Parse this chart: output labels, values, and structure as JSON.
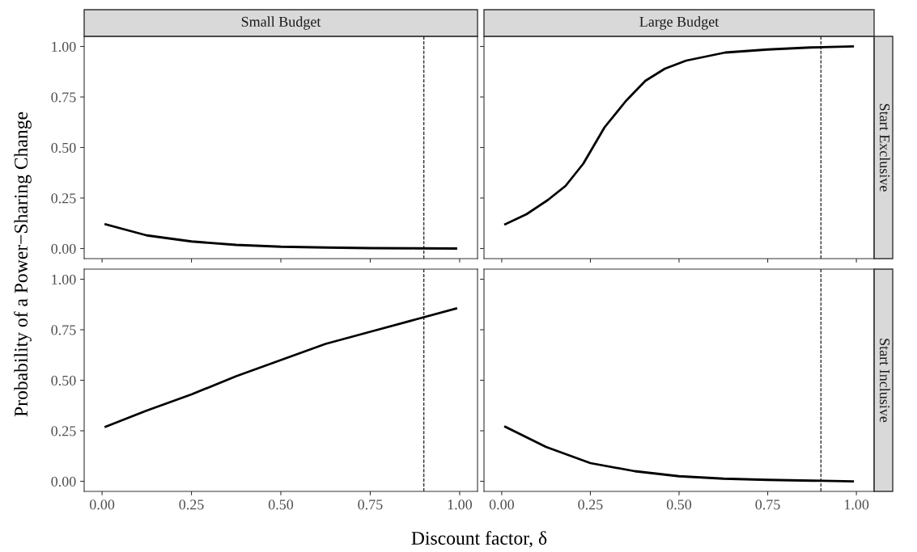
{
  "chart_data": [
    {
      "type": "line",
      "title": "Small Budget",
      "xlabel": "Discount factor, δ",
      "ylabel": "Probability of a Power−Sharing Change",
      "x": [
        0.01,
        0.125,
        0.25,
        0.375,
        0.5,
        0.625,
        0.75,
        0.875,
        0.99
      ],
      "series": [
        {
          "color": "#000000",
          "values": [
            0.12,
            0.065,
            0.035,
            0.018,
            0.009,
            0.005,
            0.002,
            0.001,
            0.0
          ]
        }
      ],
      "xlim": [
        -0.05,
        1.05
      ],
      "ylim": [
        -0.05,
        1.05
      ],
      "xticks": [
        {
          "value": 0,
          "label": null
        },
        {
          "value": 0.25,
          "label": null
        },
        {
          "value": 0.5,
          "label": null
        },
        {
          "value": 0.75,
          "label": null
        },
        {
          "value": 1,
          "label": null
        }
      ],
      "yticks": [
        {
          "value": 0,
          "label": "0.00"
        },
        {
          "value": 0.25,
          "label": "0.25"
        },
        {
          "value": 0.5,
          "label": "0.50"
        },
        {
          "value": 0.75,
          "label": "0.75"
        },
        {
          "value": 1,
          "label": "1.00"
        }
      ],
      "tick_labels": "y",
      "grid": false,
      "ref_lines": [
        {
          "axis": "x",
          "value": 0.9,
          "color": "#000000",
          "line_style": "dashed"
        }
      ]
    },
    {
      "type": "line",
      "title": "Large Budget",
      "annotations": [
        "Start Exclusive"
      ],
      "x": [
        0.01,
        0.07,
        0.13,
        0.18,
        0.23,
        0.29,
        0.35,
        0.405,
        0.46,
        0.52,
        0.63,
        0.75,
        0.87,
        0.99
      ],
      "series": [
        {
          "color": "#000000",
          "values": [
            0.12,
            0.17,
            0.24,
            0.31,
            0.42,
            0.6,
            0.73,
            0.83,
            0.89,
            0.93,
            0.97,
            0.985,
            0.995,
            1.0
          ]
        }
      ],
      "xlim": [
        -0.05,
        1.05
      ],
      "ylim": [
        -0.05,
        1.05
      ],
      "xticks": [
        {
          "value": 0,
          "label": null
        },
        {
          "value": 0.25,
          "label": null
        },
        {
          "value": 0.5,
          "label": null
        },
        {
          "value": 0.75,
          "label": null
        },
        {
          "value": 1,
          "label": null
        }
      ],
      "yticks": [
        {
          "value": 0,
          "label": null
        },
        {
          "value": 0.25,
          "label": null
        },
        {
          "value": 0.5,
          "label": null
        },
        {
          "value": 0.75,
          "label": null
        },
        {
          "value": 1,
          "label": null
        }
      ],
      "tick_labels": false,
      "grid": false,
      "ref_lines": [
        {
          "axis": "x",
          "value": 0.9,
          "color": "#000000",
          "line_style": "dashed"
        }
      ]
    },
    {
      "type": "line",
      "x": [
        0.01,
        0.125,
        0.25,
        0.375,
        0.5,
        0.625,
        0.75,
        0.875,
        0.99
      ],
      "series": [
        {
          "color": "#000000",
          "values": [
            0.27,
            0.35,
            0.43,
            0.52,
            0.6,
            0.68,
            0.74,
            0.8,
            0.855
          ]
        }
      ],
      "xlim": [
        -0.05,
        1.05
      ],
      "ylim": [
        -0.05,
        1.05
      ],
      "xticks": [
        {
          "value": 0,
          "label": "0.00"
        },
        {
          "value": 0.25,
          "label": "0.25"
        },
        {
          "value": 0.5,
          "label": "0.50"
        },
        {
          "value": 0.75,
          "label": "0.75"
        },
        {
          "value": 1,
          "label": "1.00"
        }
      ],
      "yticks": [
        {
          "value": 0,
          "label": "0.00"
        },
        {
          "value": 0.25,
          "label": "0.25"
        },
        {
          "value": 0.5,
          "label": "0.50"
        },
        {
          "value": 0.75,
          "label": "0.75"
        },
        {
          "value": 1,
          "label": "1.00"
        }
      ],
      "grid": false,
      "ref_lines": [
        {
          "axis": "x",
          "value": 0.9,
          "color": "#000000",
          "line_style": "dashed"
        }
      ]
    },
    {
      "type": "line",
      "annotations": [
        "Start Inclusive"
      ],
      "x": [
        0.01,
        0.125,
        0.25,
        0.375,
        0.5,
        0.625,
        0.75,
        0.875,
        0.99
      ],
      "series": [
        {
          "color": "#000000",
          "values": [
            0.27,
            0.17,
            0.09,
            0.05,
            0.025,
            0.013,
            0.007,
            0.003,
            0.0
          ]
        }
      ],
      "xlim": [
        -0.05,
        1.05
      ],
      "ylim": [
        -0.05,
        1.05
      ],
      "xticks": [
        {
          "value": 0,
          "label": "0.00"
        },
        {
          "value": 0.25,
          "label": "0.25"
        },
        {
          "value": 0.5,
          "label": "0.50"
        },
        {
          "value": 0.75,
          "label": "0.75"
        },
        {
          "value": 1,
          "label": "1.00"
        }
      ],
      "yticks": [
        {
          "value": 0,
          "label": null
        },
        {
          "value": 0.25,
          "label": null
        },
        {
          "value": 0.5,
          "label": null
        },
        {
          "value": 0.75,
          "label": null
        },
        {
          "value": 1,
          "label": null
        }
      ],
      "tick_labels": "x",
      "grid": false,
      "ref_lines": [
        {
          "axis": "x",
          "value": 0.9,
          "color": "#000000",
          "line_style": "dashed"
        }
      ]
    }
  ]
}
